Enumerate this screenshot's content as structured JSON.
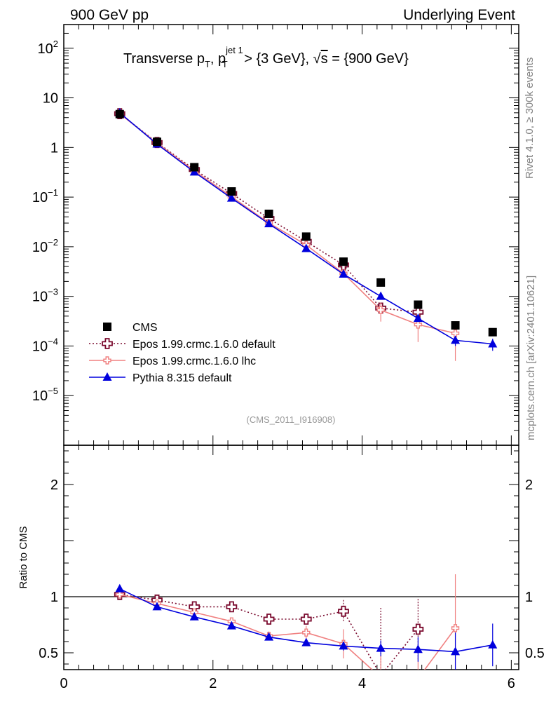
{
  "header": {
    "left": "900 GeV pp",
    "right": "Underlying Event"
  },
  "side_labels": {
    "rivet": "Rivet 4.1.0, ≥ 300k events",
    "mcplots": "mcplots.cern.ch [arXiv:2401.10621]"
  },
  "chart_data": {
    "type": "scatter",
    "title_parts": {
      "a": "Transverse p",
      "a_sub": "T",
      "b": ", p",
      "b_sup": "jet 1",
      "b_sub": "T",
      "c": " > {3 GeV}, ",
      "sqrt": "√",
      "s": "s",
      "d": " = {900 GeV}"
    },
    "analysis_id": "(CMS_2011_I916908)",
    "yscale": "log",
    "xlim": [
      0,
      6.1
    ],
    "ylim": [
      1e-06,
      300
    ],
    "ratio_ylabel": "Ratio to CMS",
    "ratio_ylim": [
      0.35,
      2.35
    ],
    "ratio_reference": 1,
    "x_ticks": [
      "0",
      "2",
      "4",
      "6"
    ],
    "main_ticks": [
      {
        "value": 100,
        "base": "10",
        "exp": "2"
      },
      {
        "value": 10,
        "base": "10",
        "exp": ""
      },
      {
        "value": 1,
        "base": "1",
        "exp": ""
      },
      {
        "value": 0.1,
        "base": "10",
        "exp": "−1"
      },
      {
        "value": 0.01,
        "base": "10",
        "exp": "−2"
      },
      {
        "value": 0.001,
        "base": "10",
        "exp": "−3"
      },
      {
        "value": 0.0001,
        "base": "10",
        "exp": "−4"
      },
      {
        "value": 1e-05,
        "base": "10",
        "exp": "−5"
      }
    ],
    "ratio_ticks": [
      {
        "value": 2,
        "label": "2"
      },
      {
        "value": 1,
        "label": "1"
      },
      {
        "value": 0.5,
        "label": "0.5"
      }
    ],
    "legend": {
      "position": "lower-left",
      "entries": [
        "CMS",
        "Epos 1.99.crmc.1.6.0 default",
        "Epos 1.99.crmc.1.6.0 lhc",
        "Pythia 8.315 default"
      ]
    },
    "x": [
      0.75,
      1.25,
      1.75,
      2.25,
      2.75,
      3.25,
      3.75,
      4.25,
      4.75,
      5.25,
      5.75
    ],
    "series": [
      {
        "name": "CMS",
        "color": "#000000",
        "marker": "square",
        "values": [
          4.7,
          1.3,
          0.4,
          0.13,
          0.046,
          0.016,
          0.005,
          0.0019,
          0.00068,
          0.00026,
          0.00019
        ]
      },
      {
        "name": "Epos 1.99.crmc.1.6.0 default",
        "color": "#7a0a2e",
        "marker": "open-cross",
        "line": "dotted",
        "values": [
          4.8,
          1.26,
          0.36,
          0.118,
          0.037,
          0.0128,
          0.0043,
          0.00058,
          0.00048
        ],
        "ratio": [
          1.02,
          0.97,
          0.91,
          0.91,
          0.8,
          0.8,
          0.87,
          0.3,
          0.71
        ],
        "ratio_err": [
          0.01,
          0.01,
          0.01,
          0.01,
          0.01,
          0.05,
          0.1,
          0.6,
          0.27
        ]
      },
      {
        "name": "Epos 1.99.crmc.1.6.0 lhc",
        "color": "#f08080",
        "marker": "small-cross",
        "line": "solid",
        "values": [
          4.8,
          1.22,
          0.34,
          0.102,
          0.03,
          0.0109,
          0.0029,
          0.00053,
          0.00027,
          0.00018
        ],
        "errors": [
          0,
          0,
          0,
          0,
          0,
          0,
          0,
          0.00022,
          0.00015,
          0.00013
        ],
        "ratio": [
          1.02,
          0.94,
          0.86,
          0.78,
          0.65,
          0.68,
          0.58,
          0.28,
          0.27,
          0.72
        ],
        "ratio_err": [
          0.01,
          0.01,
          0.01,
          0.01,
          0.04,
          0.06,
          0.13,
          0.2,
          0.2,
          0.48
        ]
      },
      {
        "name": "Pythia 8.315 default",
        "color": "#0000dd",
        "marker": "triangle",
        "line": "solid",
        "values": [
          5.0,
          1.17,
          0.32,
          0.095,
          0.029,
          0.0092,
          0.0028,
          0.001,
          0.00036,
          0.00013,
          0.00011
        ],
        "errors": [
          0,
          0,
          0,
          0,
          0,
          0,
          0,
          0,
          0,
          3e-05,
          3e-05
        ],
        "ratio": [
          1.07,
          0.91,
          0.82,
          0.74,
          0.64,
          0.59,
          0.56,
          0.54,
          0.53,
          0.51,
          0.57
        ],
        "ratio_err": [
          0,
          0,
          0,
          0.01,
          0.01,
          0.02,
          0.04,
          0.07,
          0.11,
          0.17,
          0.19
        ]
      }
    ]
  }
}
